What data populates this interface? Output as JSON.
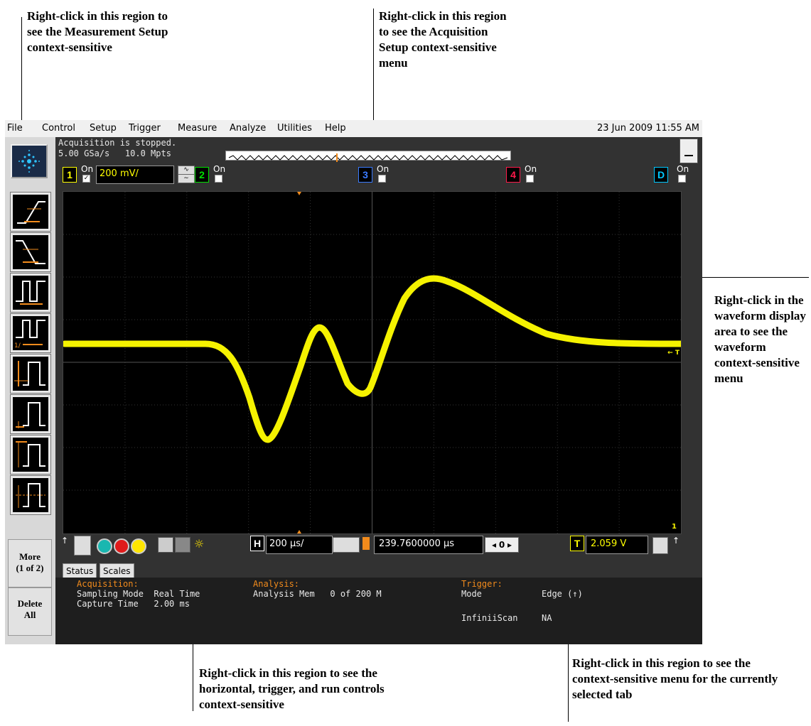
{
  "callouts": {
    "measurement": "Right-click in this region to see the Measurement Setup context-sensitive",
    "acquisition": "Right-click in this region to see the Acquisition Setup context-sensitive menu",
    "waveform": "Right-click in the waveform display area to see the waveform context-sensitive menu",
    "horizontal": "Right-click in this region to see the horizontal, trigger, and run controls context-sensitive",
    "tab": "Right-click in this region to see the context-sensitive menu for the currently selected tab"
  },
  "menu": {
    "items": [
      "File",
      "Control",
      "Setup",
      "Trigger",
      "Measure",
      "Analyze",
      "Utilities",
      "Help"
    ],
    "datetime": "23 Jun 2009 11:55 AM"
  },
  "status_line": {
    "state": "Acquisition is stopped.",
    "rate": "5.00 GSa/s   10.0 Mpts"
  },
  "channels": [
    {
      "label": "1",
      "on": "On",
      "checked": true,
      "scale": "200 mV/",
      "color": "#ffff00"
    },
    {
      "label": "2",
      "on": "On",
      "checked": false,
      "color": "#00e000"
    },
    {
      "label": "3",
      "on": "On",
      "checked": false,
      "color": "#3a7bff"
    },
    {
      "label": "4",
      "on": "On",
      "checked": false,
      "color": "#ff1a4b"
    },
    {
      "label": "D",
      "on": "On",
      "checked": false,
      "color": "#00c8ff"
    }
  ],
  "sidebar": {
    "more_label": "More",
    "more_page": "(1 of 2)",
    "delete_label": "Delete",
    "delete_sub": "All"
  },
  "horizontal": {
    "h_label": "H",
    "h_scale": "200 µs/",
    "position": "239.7600000 µs",
    "nav_value": "0",
    "t_label": "T",
    "trigger_level": "2.059 V"
  },
  "tabs": [
    "Status",
    "Scales"
  ],
  "status_panel": {
    "acq_header": "Acquisition:",
    "acq_row1": "Sampling Mode  Real Time",
    "acq_row2": "Capture Time   2.00 ms",
    "analysis_header": "Analysis:",
    "analysis_row1": "Analysis Mem   0 of 200 M",
    "trigger_header": "Trigger:",
    "trig_mode_label": "Mode",
    "trig_mode_value": "Edge (↑)",
    "infiniiscan_label": "InfiniiScan",
    "infiniiscan_value": "NA"
  },
  "markers": {
    "trigger_level_marker": "← T",
    "channel_marker": "1"
  }
}
